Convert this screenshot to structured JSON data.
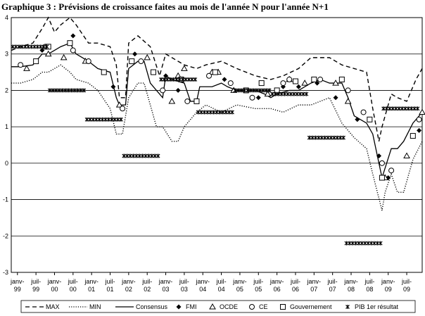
{
  "chart_data": {
    "type": "line",
    "title": "Graphique 3 : Prévisions de croissance faites au mois de l'année N pour l'année N+1",
    "xlim": [
      -2,
      131
    ],
    "ylim": [
      -3,
      4
    ],
    "yticks": [
      -3,
      -2,
      -1,
      0,
      1,
      2,
      3,
      4
    ],
    "xticks": [
      {
        "value": 0,
        "label": "janv-99"
      },
      {
        "value": 6,
        "label": "juil-99"
      },
      {
        "value": 12,
        "label": "janv-00"
      },
      {
        "value": 18,
        "label": "juil-00"
      },
      {
        "value": 24,
        "label": "janv-01"
      },
      {
        "value": 30,
        "label": "juil-01"
      },
      {
        "value": 36,
        "label": "janv-02"
      },
      {
        "value": 42,
        "label": "juil-02"
      },
      {
        "value": 48,
        "label": "janv-03"
      },
      {
        "value": 54,
        "label": "juil-03"
      },
      {
        "value": 60,
        "label": "janv-04"
      },
      {
        "value": 66,
        "label": "juil-04"
      },
      {
        "value": 72,
        "label": "janv-05"
      },
      {
        "value": 78,
        "label": "juil-05"
      },
      {
        "value": 84,
        "label": "janv-06"
      },
      {
        "value": 90,
        "label": "juil-06"
      },
      {
        "value": 96,
        "label": "janv-07"
      },
      {
        "value": 102,
        "label": "juil-07"
      },
      {
        "value": 108,
        "label": "janv-08"
      },
      {
        "value": 114,
        "label": "juil-08"
      },
      {
        "value": 120,
        "label": "janv-09"
      },
      {
        "value": 126,
        "label": "juil-09"
      }
    ],
    "grid": true,
    "series": [
      {
        "name": "MAX",
        "color": "#000000",
        "line_style": "dashed",
        "x": [
          -2,
          1,
          5,
          8,
          10,
          12,
          14,
          17,
          19,
          23,
          26,
          30,
          32,
          33,
          35,
          36,
          39,
          43,
          46,
          48,
          50,
          54,
          58,
          61,
          66,
          71,
          77,
          82,
          86,
          91,
          95,
          101,
          105,
          109,
          113,
          115,
          117,
          118,
          121,
          123,
          126,
          129,
          131
        ],
        "values": [
          3.1,
          3.2,
          3.3,
          3.7,
          4.0,
          3.6,
          3.8,
          4.0,
          3.8,
          3.3,
          3.3,
          3.2,
          2.7,
          1.8,
          1.8,
          3.3,
          3.5,
          3.2,
          2.4,
          3.0,
          2.9,
          2.7,
          2.6,
          2.7,
          2.8,
          2.6,
          2.4,
          2.3,
          2.4,
          2.6,
          2.9,
          2.9,
          2.7,
          2.6,
          2.5,
          1.5,
          0.6,
          1.0,
          1.9,
          1.8,
          1.7,
          2.3,
          2.6
        ]
      },
      {
        "name": "MIN",
        "color": "#000000",
        "line_style": "dotted",
        "x": [
          -2,
          1,
          5,
          8,
          10,
          14,
          17,
          19,
          23,
          26,
          30,
          32,
          34,
          36,
          39,
          41,
          43,
          45,
          47,
          50,
          52,
          54,
          58,
          61,
          66,
          71,
          77,
          82,
          86,
          91,
          95,
          101,
          105,
          109,
          113,
          115,
          118,
          119,
          121,
          123,
          125,
          128,
          131
        ],
        "values": [
          2.2,
          2.2,
          2.3,
          2.5,
          2.5,
          2.7,
          2.5,
          2.3,
          2.2,
          2.0,
          1.5,
          0.8,
          0.8,
          1.8,
          2.2,
          2.2,
          1.6,
          1.0,
          1.0,
          0.6,
          0.6,
          1.0,
          1.4,
          1.6,
          1.4,
          1.6,
          1.5,
          1.5,
          1.4,
          1.6,
          1.6,
          1.8,
          1.1,
          0.7,
          0.4,
          -0.3,
          -1.3,
          -0.8,
          -0.3,
          -0.8,
          -0.8,
          0.1,
          0.6
        ]
      },
      {
        "name": "Consensus",
        "color": "#000000",
        "line_style": "solid",
        "x": [
          -2,
          1,
          5,
          8,
          10,
          14,
          17,
          19,
          23,
          26,
          30,
          32,
          33,
          35,
          36,
          39,
          41,
          43,
          46,
          47,
          48,
          50,
          54,
          56,
          58,
          59,
          63,
          66,
          68,
          71,
          74,
          77,
          80,
          82,
          84,
          88,
          91,
          95,
          98,
          101,
          105,
          107,
          109,
          113,
          115,
          117,
          118,
          121,
          123,
          125,
          128,
          130,
          131
        ],
        "values": [
          2.65,
          2.65,
          2.7,
          3.0,
          3.0,
          3.2,
          3.3,
          3.0,
          2.8,
          2.6,
          2.5,
          1.8,
          1.6,
          1.6,
          2.6,
          2.8,
          2.8,
          2.2,
          1.9,
          1.8,
          2.4,
          2.3,
          2.2,
          1.7,
          1.7,
          2.1,
          2.1,
          2.2,
          2.1,
          2.0,
          2.0,
          2.0,
          1.9,
          1.8,
          1.9,
          2.0,
          2.0,
          2.2,
          2.3,
          2.2,
          2.2,
          1.8,
          1.3,
          1.1,
          0.8,
          0.0,
          -0.4,
          0.4,
          0.4,
          0.6,
          1.1,
          1.3,
          1.4
        ]
      },
      {
        "name": "FMI",
        "color": "#000000",
        "marker": "diamond",
        "x": [
          8,
          18,
          31,
          38,
          48,
          52,
          62,
          67,
          70,
          78,
          86,
          91,
          97,
          103,
          110,
          117,
          120,
          130
        ],
        "values": [
          3.1,
          3.5,
          2.1,
          3.0,
          2.4,
          2.0,
          2.4,
          2.3,
          2.0,
          1.8,
          2.1,
          2.1,
          2.2,
          1.8,
          1.2,
          0.2,
          -0.4,
          0.9
        ]
      },
      {
        "name": "OCDE",
        "color": "#000000",
        "marker": "triangle",
        "x": [
          3,
          10,
          15,
          22,
          33,
          42,
          50,
          52,
          54,
          63,
          65,
          70,
          81,
          88,
          93,
          103,
          107,
          119,
          126,
          131
        ],
        "values": [
          2.6,
          3.0,
          2.9,
          2.8,
          1.6,
          2.9,
          1.7,
          2.4,
          2.6,
          2.5,
          2.5,
          2.0,
          1.9,
          2.3,
          2.2,
          2.2,
          1.7,
          -0.4,
          0.2,
          1.4
        ]
      },
      {
        "name": "CE",
        "color": "#000000",
        "marker": "circle",
        "x": [
          1,
          9,
          18,
          23,
          34,
          40,
          47,
          55,
          62,
          69,
          76,
          86,
          88,
          98,
          107,
          112,
          118,
          121,
          130
        ],
        "values": [
          2.7,
          3.2,
          3.1,
          2.8,
          1.5,
          2.8,
          2.0,
          1.7,
          2.4,
          2.2,
          1.8,
          2.2,
          2.3,
          2.3,
          2.0,
          1.4,
          0.0,
          -0.2,
          1.2
        ]
      },
      {
        "name": "Gouvernement",
        "color": "#000000",
        "marker": "square",
        "x": [
          6,
          10,
          17,
          28,
          37,
          44,
          53,
          58,
          64,
          74,
          79,
          84,
          90,
          96,
          105,
          114,
          118,
          128
        ],
        "values": [
          2.8,
          3.2,
          3.3,
          2.5,
          2.8,
          2.5,
          2.3,
          1.7,
          2.5,
          2.0,
          2.2,
          2.0,
          2.25,
          2.3,
          2.3,
          1.2,
          -0.4,
          0.75
        ]
      },
      {
        "name": "PIB 1er résultat",
        "color": "#000000",
        "marker": "star-row",
        "x": [
          -2,
          10,
          22,
          34,
          46,
          58,
          70,
          82,
          94,
          106,
          118
        ],
        "values": [
          3.2,
          2.0,
          1.2,
          0.2,
          2.3,
          1.4,
          2.0,
          1.9,
          0.7,
          -2.2,
          1.5
        ]
      }
    ]
  }
}
